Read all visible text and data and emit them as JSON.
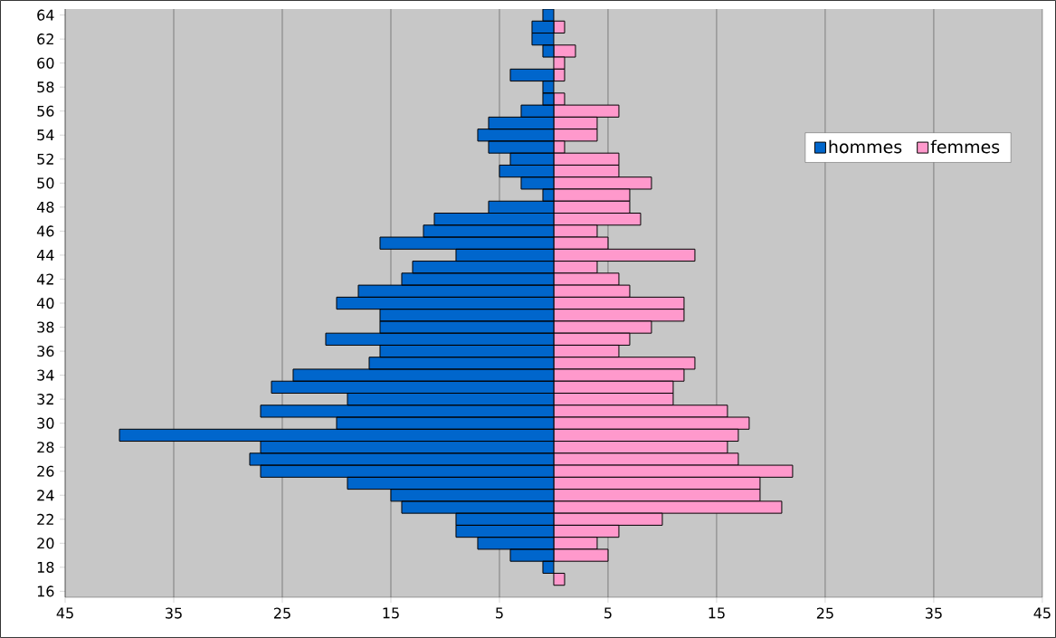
{
  "chart_data": {
    "type": "bar",
    "orientation": "horizontal",
    "categories": [
      "64",
      null,
      "62",
      null,
      "60",
      null,
      "58",
      null,
      "56",
      null,
      "54",
      null,
      "52",
      null,
      "50",
      null,
      "48",
      null,
      "46",
      null,
      "44",
      null,
      "42",
      null,
      "40",
      null,
      "38",
      null,
      "36",
      null,
      "34",
      null,
      "32",
      null,
      "30",
      null,
      "28",
      null,
      "26",
      null,
      "24",
      null,
      "22",
      null,
      "20",
      null,
      "18",
      null,
      "16"
    ],
    "series": [
      {
        "name": "hommes",
        "color": "#0066cc",
        "values": [
          -1,
          -2,
          -2,
          -1,
          null,
          -4,
          -1,
          -1,
          -3,
          -6,
          -7,
          -6,
          -4,
          -5,
          -3,
          -1,
          -6,
          -11,
          -12,
          -16,
          -9,
          -13,
          -14,
          -18,
          -20,
          -16,
          -16,
          -21,
          -16,
          -17,
          -24,
          -26,
          -19,
          -27,
          -20,
          -40,
          -27,
          -28,
          -27,
          -19,
          -15,
          -14,
          -9,
          -9,
          -7,
          -4,
          -1,
          null,
          null
        ]
      },
      {
        "name": "femmes",
        "color": "#ff99cc",
        "values": [
          null,
          1,
          null,
          2,
          1,
          1,
          null,
          1,
          6,
          4,
          4,
          1,
          6,
          6,
          9,
          7,
          7,
          8,
          4,
          5,
          13,
          4,
          6,
          7,
          12,
          12,
          9,
          7,
          6,
          13,
          12,
          11,
          11,
          16,
          18,
          17,
          16,
          17,
          22,
          19,
          19,
          21,
          10,
          6,
          4,
          5,
          null,
          1,
          null
        ]
      }
    ],
    "xlim": [
      -45,
      45
    ],
    "xticks": [
      {
        "value": -45,
        "label": "45"
      },
      {
        "value": -35,
        "label": "35"
      },
      {
        "value": -25,
        "label": "25"
      },
      {
        "value": -15,
        "label": "15"
      },
      {
        "value": -5,
        "label": "5"
      },
      5,
      15,
      25,
      35,
      45
    ],
    "stacked": true,
    "grid": "x",
    "legend": "top right"
  }
}
